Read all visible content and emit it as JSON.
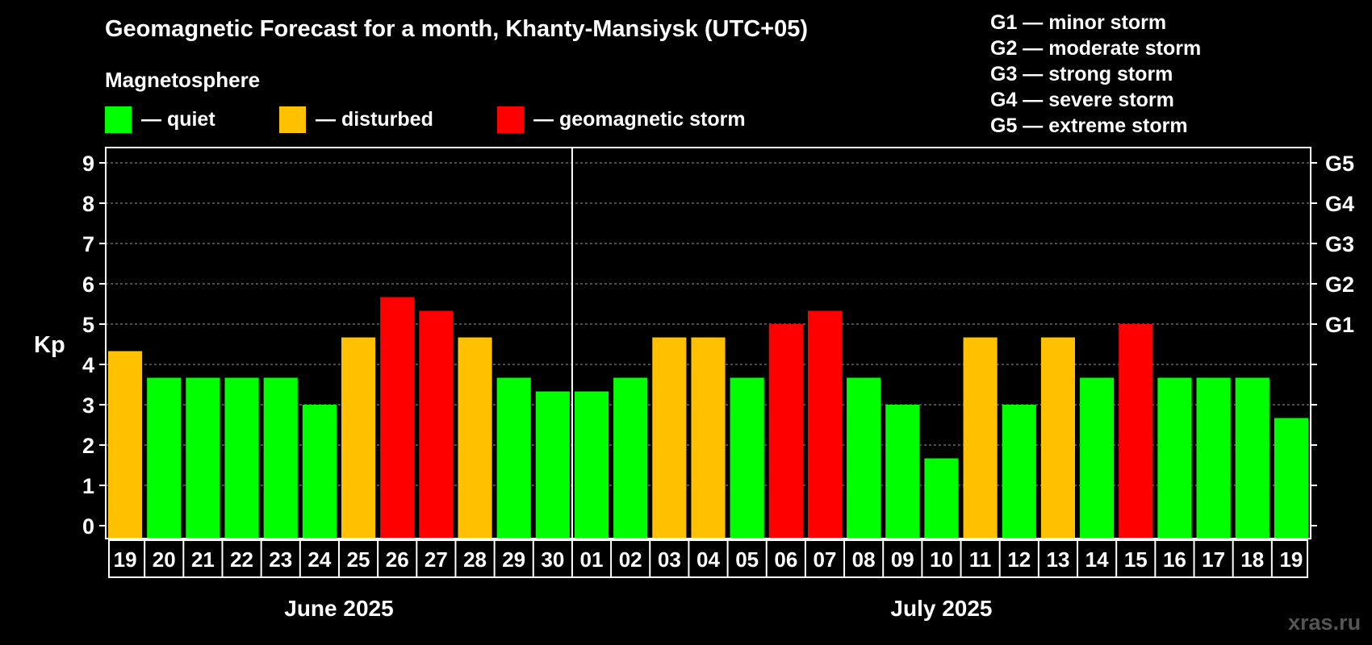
{
  "title": "Geomagnetic Forecast for a month, Khanty-Mansiysk (UTC+05)",
  "subtitle": "Magnetosphere",
  "legend": [
    {
      "label": "— quiet",
      "color": "#00ff00"
    },
    {
      "label": "— disturbed",
      "color": "#ffc000"
    },
    {
      "label": "— geomagnetic storm",
      "color": "#ff0000"
    }
  ],
  "g_legend": [
    "G1 — minor storm",
    "G2 — moderate storm",
    "G3 — strong storm",
    "G4 — severe storm",
    "G5 — extreme storm"
  ],
  "watermark": "xras.ru",
  "chart_data": {
    "type": "bar",
    "ylabel": "Kp",
    "ylim": [
      0,
      9
    ],
    "y_ticks": [
      "0",
      "1",
      "2",
      "3",
      "4",
      "5",
      "6",
      "7",
      "8",
      "9"
    ],
    "right_axis_labels": [
      {
        "kp": 5,
        "label": "G1"
      },
      {
        "kp": 6,
        "label": "G2"
      },
      {
        "kp": 7,
        "label": "G3"
      },
      {
        "kp": 8,
        "label": "G4"
      },
      {
        "kp": 9,
        "label": "G5"
      }
    ],
    "grid": "dashed horizontal",
    "months": [
      {
        "label": "June 2025",
        "count": 12
      },
      {
        "label": "July 2025",
        "count": 19
      }
    ],
    "categories": [
      "19",
      "20",
      "21",
      "22",
      "23",
      "24",
      "25",
      "26",
      "27",
      "28",
      "29",
      "30",
      "01",
      "02",
      "03",
      "04",
      "05",
      "06",
      "07",
      "08",
      "09",
      "10",
      "11",
      "12",
      "13",
      "14",
      "15",
      "16",
      "17",
      "18",
      "19"
    ],
    "values": [
      4.33,
      3.67,
      3.67,
      3.67,
      3.67,
      3.0,
      4.67,
      5.67,
      5.33,
      4.67,
      3.67,
      3.33,
      3.33,
      3.67,
      4.67,
      4.67,
      3.67,
      5.0,
      5.33,
      3.67,
      3.0,
      1.67,
      4.67,
      3.0,
      4.67,
      3.67,
      5.0,
      3.67,
      3.67,
      3.67,
      2.67
    ],
    "levels": [
      "disturbed",
      "quiet",
      "quiet",
      "quiet",
      "quiet",
      "quiet",
      "disturbed",
      "storm",
      "storm",
      "disturbed",
      "quiet",
      "quiet",
      "quiet",
      "quiet",
      "disturbed",
      "disturbed",
      "quiet",
      "storm",
      "storm",
      "quiet",
      "quiet",
      "quiet",
      "disturbed",
      "quiet",
      "disturbed",
      "quiet",
      "storm",
      "quiet",
      "quiet",
      "quiet",
      "quiet"
    ],
    "level_colors": {
      "quiet": "#00ff00",
      "disturbed": "#ffc000",
      "storm": "#ff0000"
    }
  }
}
